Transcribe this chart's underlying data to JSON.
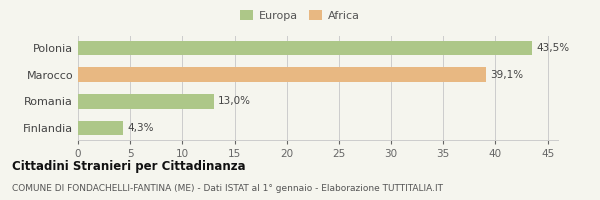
{
  "categories": [
    "Finlandia",
    "Romania",
    "Marocco",
    "Polonia"
  ],
  "values": [
    4.3,
    13.0,
    39.1,
    43.5
  ],
  "labels": [
    "4,3%",
    "13,0%",
    "39,1%",
    "43,5%"
  ],
  "bar_colors": [
    "#adc788",
    "#adc788",
    "#e8b882",
    "#adc788"
  ],
  "legend": [
    {
      "label": "Europa",
      "color": "#adc788"
    },
    {
      "label": "Africa",
      "color": "#e8b882"
    }
  ],
  "xlim": [
    0,
    46
  ],
  "xticks": [
    0,
    5,
    10,
    15,
    20,
    25,
    30,
    35,
    40,
    45
  ],
  "title": "Cittadini Stranieri per Cittadinanza",
  "subtitle": "COMUNE DI FONDACHELLI-FANTINA (ME) - Dati ISTAT al 1° gennaio - Elaborazione TUTTITALIA.IT",
  "bg_color": "#f5f5ee",
  "grid_color": "#cccccc"
}
